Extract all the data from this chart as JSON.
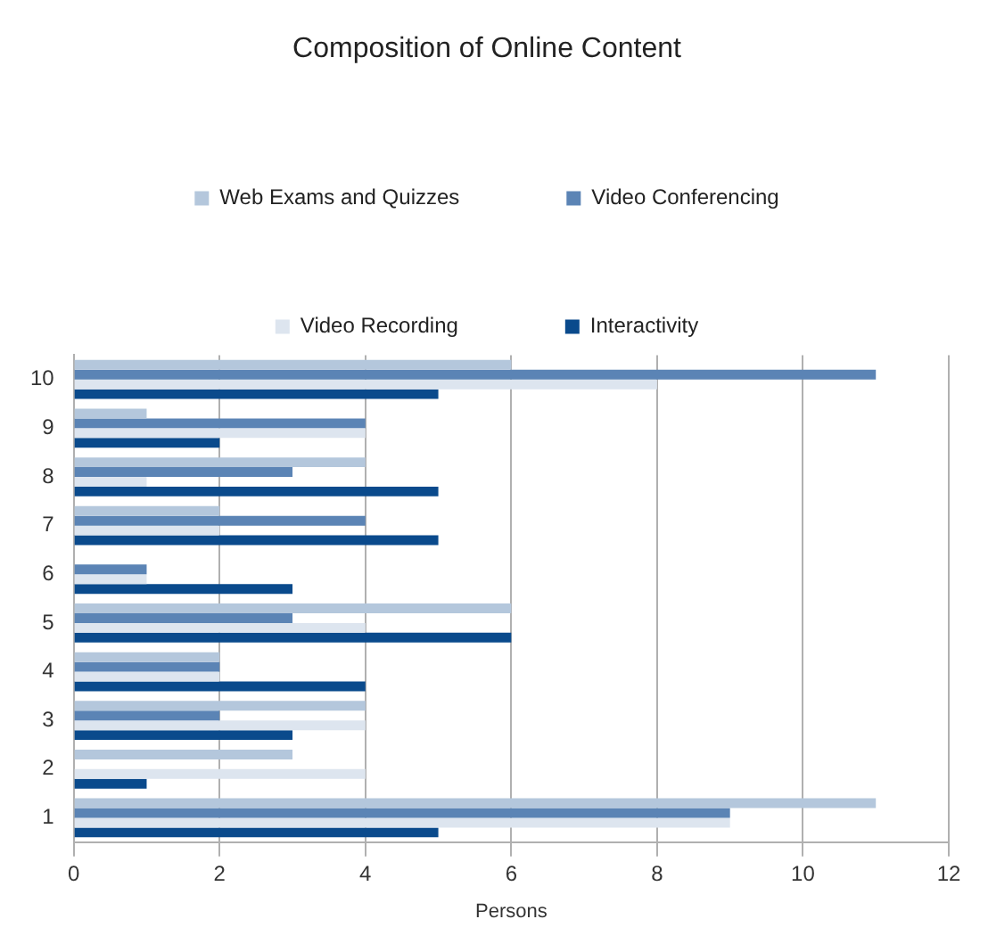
{
  "chart_data": {
    "type": "bar",
    "orientation": "horizontal",
    "title": "Composition of Online Content",
    "xlabel": "Persons",
    "categories": [
      "10",
      "9",
      "8",
      "7",
      "6",
      "5",
      "4",
      "3",
      "2",
      "1"
    ],
    "series": [
      {
        "name": "Web Exams and Quizzes",
        "color": "#b4c7dc",
        "values": [
          6,
          1,
          4,
          2,
          0,
          6,
          2,
          4,
          3,
          11
        ]
      },
      {
        "name": "Video Conferencing",
        "color": "#5b84b5",
        "values": [
          11,
          4,
          3,
          4,
          1,
          3,
          2,
          2,
          0,
          9
        ]
      },
      {
        "name": "Video Recording",
        "color": "#dde5ef",
        "values": [
          8,
          4,
          1,
          2,
          1,
          4,
          2,
          4,
          4,
          9
        ]
      },
      {
        "name": "Interactivity",
        "color": "#0a4a8c",
        "values": [
          5,
          2,
          5,
          5,
          3,
          6,
          4,
          3,
          1,
          5
        ]
      }
    ],
    "xlim": [
      0,
      12
    ],
    "xticks": [
      0,
      2,
      4,
      6,
      8,
      10,
      12
    ],
    "grid": "x",
    "legend": "top"
  }
}
